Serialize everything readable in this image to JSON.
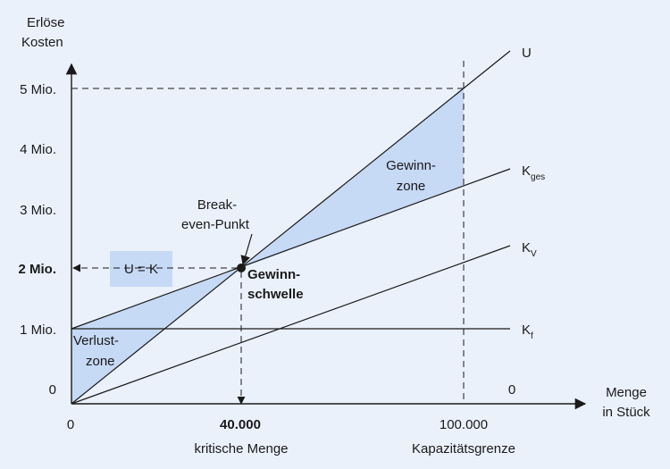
{
  "axes": {
    "y_label_line1": "Erlöse",
    "y_label_line2": "Kosten",
    "x_label_line1": "Menge",
    "x_label_line2": "in Stück",
    "y_ticks": [
      "0",
      "1 Mio.",
      "2 Mio.",
      "3 Mio.",
      "4 Mio.",
      "5 Mio."
    ],
    "x_ticks": [
      "0",
      "40.000",
      "100.000"
    ],
    "x_zero_right": "0"
  },
  "lines": {
    "u": "U",
    "kges_main": "K",
    "kges_sub": "ges",
    "kv_main": "K",
    "kv_sub": "V",
    "kf_main": "K",
    "kf_sub": "f"
  },
  "zones": {
    "gewinn_line1": "Gewinn-",
    "gewinn_line2": "zone",
    "verlust_line1": "Verlust-",
    "verlust_line2": "zone"
  },
  "annotations": {
    "breakeven_line1": "Break-",
    "breakeven_line2": "even-Punkt",
    "u_eq_k": "U = K",
    "schwelle_line1": "Gewinn-",
    "schwelle_line2": "schwelle",
    "kritische_menge": "kritische Menge",
    "kapazitaetsgrenze": "Kapazitätsgrenze"
  },
  "colors": {
    "background": "#eaf1fb",
    "zone_fill": "#c6d9f5",
    "line": "#1a1a1a"
  }
}
